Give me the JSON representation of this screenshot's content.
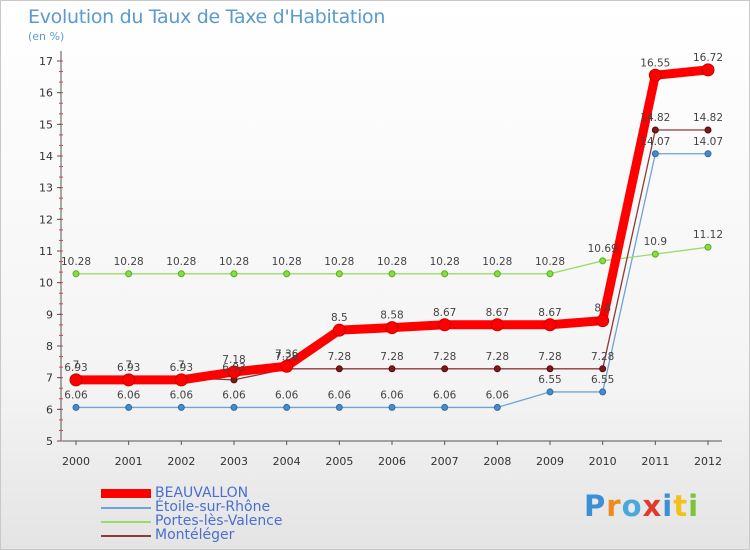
{
  "chart_data": {
    "type": "line",
    "title": "Evolution du Taux de Taxe d'Habitation",
    "subtitle": "(en %)",
    "xlabel": "",
    "ylabel": "",
    "categories": [
      "2000",
      "2001",
      "2002",
      "2003",
      "2004",
      "2005",
      "2006",
      "2007",
      "2008",
      "2009",
      "2010",
      "2011",
      "2012"
    ],
    "ylim": [
      5,
      17
    ],
    "yticks": [
      5,
      6,
      7,
      8,
      9,
      10,
      11,
      12,
      13,
      14,
      15,
      16,
      17
    ],
    "grid": false,
    "legend_placement": "bottom-left",
    "series": [
      {
        "name": "BEAUVALLON",
        "color": "#ff0000",
        "values": [
          6.93,
          6.93,
          6.93,
          7.18,
          7.36,
          8.5,
          8.58,
          8.67,
          8.67,
          8.67,
          8.8,
          16.55,
          16.72
        ],
        "labels": [
          "6.93",
          "6.93",
          "6.93",
          "7.18",
          "7.36",
          "8.5",
          "8.58",
          "8.67",
          "8.67",
          "8.67",
          "8.8",
          "16.55",
          "16.72"
        ]
      },
      {
        "name": "Étoile-sur-Rhône",
        "color": "#6fa3d4",
        "values": [
          6.06,
          6.06,
          6.06,
          6.06,
          6.06,
          6.06,
          6.06,
          6.06,
          6.06,
          6.55,
          6.55,
          14.07,
          14.07
        ],
        "labels": [
          "6.06",
          "6.06",
          "6.06",
          "6.06",
          "6.06",
          "6.06",
          "6.06",
          "6.06",
          "6.06",
          "6.55",
          "6.55",
          "14.07",
          "14.07"
        ]
      },
      {
        "name": "Portes-lès-Valence",
        "color": "#99dd66",
        "values": [
          10.28,
          10.28,
          10.28,
          10.28,
          10.28,
          10.28,
          10.28,
          10.28,
          10.28,
          10.28,
          10.69,
          10.9,
          11.12
        ],
        "labels": [
          "10.28",
          "10.28",
          "10.28",
          "10.28",
          "10.28",
          "10.28",
          "10.28",
          "10.28",
          "10.28",
          "10.28",
          "10.69",
          "10.9",
          "11.12"
        ]
      },
      {
        "name": "Montéléger",
        "color": "#8b3a3a",
        "values": [
          7,
          7,
          7,
          6.93,
          7.28,
          7.28,
          7.28,
          7.28,
          7.28,
          7.28,
          7.28,
          14.82,
          14.82
        ],
        "labels": [
          "7",
          "7",
          "7",
          "6.93",
          "7.28",
          "7.28",
          "7.28",
          "7.28",
          "7.28",
          "7.28",
          "7.28",
          "14.82",
          "14.82"
        ]
      }
    ]
  },
  "legend": {
    "items": [
      {
        "label": "BEAUVALLON",
        "color": "#ff0000"
      },
      {
        "label": "Étoile-sur-Rhône",
        "color": "#6fa3d4"
      },
      {
        "label": "Portes-lès-Valence",
        "color": "#99dd66"
      },
      {
        "label": "Montéléger",
        "color": "#8b3a3a"
      }
    ]
  },
  "logo": {
    "letters": [
      "P",
      "r",
      "o",
      "x",
      "i",
      "t",
      "i"
    ],
    "colors": [
      "#3a8fd6",
      "#f08a1c",
      "#4aa8e0",
      "#e23a2a",
      "#3a8fd6",
      "#f2c21a",
      "#7cc23a"
    ]
  }
}
